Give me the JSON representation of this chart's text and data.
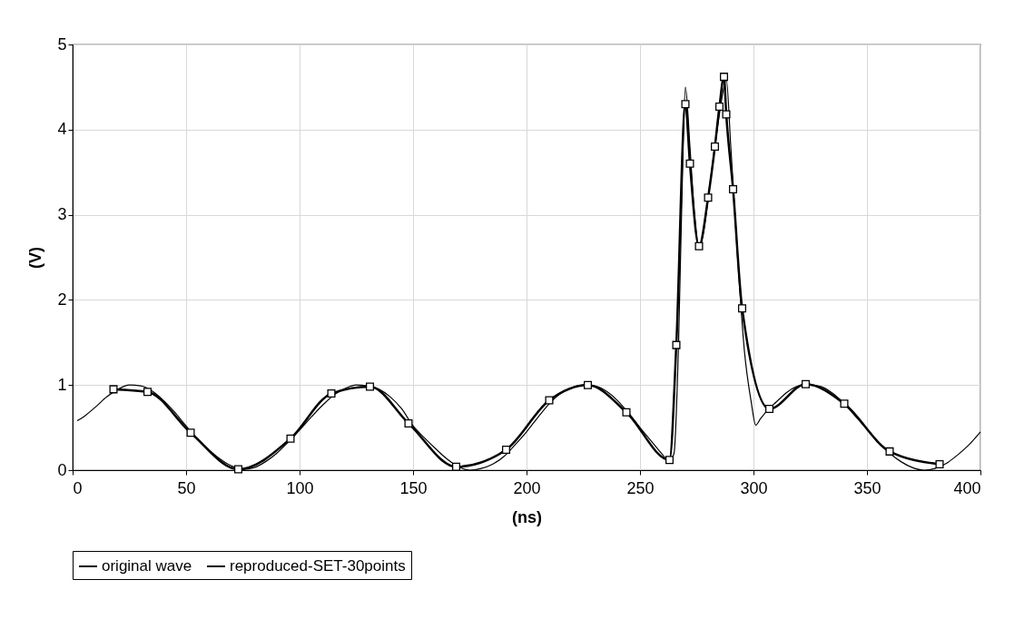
{
  "chart_data": {
    "type": "line",
    "xlabel": "(ns)",
    "ylabel": "(V)",
    "xlim": [
      0,
      400
    ],
    "xticks": [
      0,
      50,
      100,
      150,
      200,
      250,
      300,
      350,
      400
    ],
    "ylim": [
      0,
      5
    ],
    "yticks": [
      0,
      1,
      2,
      3,
      4,
      5
    ],
    "grid": true,
    "legend": "bottom",
    "series": [
      {
        "name": "original wave",
        "color": "#000000",
        "marker": "none",
        "x": [
          2,
          5,
          10,
          15,
          20,
          25,
          30,
          35,
          40,
          45,
          50,
          55,
          60,
          65,
          70,
          75,
          80,
          85,
          90,
          95,
          100,
          105,
          110,
          115,
          120,
          125,
          130,
          135,
          140,
          145,
          150,
          155,
          160,
          165,
          170,
          175,
          180,
          185,
          190,
          195,
          200,
          205,
          210,
          215,
          220,
          225,
          230,
          235,
          240,
          245,
          250,
          255,
          260,
          263,
          265,
          267,
          269,
          270,
          272,
          274,
          276,
          278,
          281,
          284,
          287,
          288,
          290,
          293,
          296,
          299,
          301,
          303,
          306,
          310,
          315,
          320,
          325,
          330,
          335,
          340,
          345,
          350,
          355,
          360,
          365,
          370,
          375,
          380,
          385,
          390,
          395,
          400
        ],
        "values": [
          0.58,
          0.63,
          0.74,
          0.86,
          0.95,
          1.0,
          0.99,
          0.93,
          0.82,
          0.68,
          0.52,
          0.37,
          0.24,
          0.13,
          0.05,
          0.01,
          0.03,
          0.1,
          0.2,
          0.33,
          0.47,
          0.62,
          0.76,
          0.88,
          0.96,
          1.0,
          0.99,
          0.95,
          0.86,
          0.72,
          0.52,
          0.38,
          0.25,
          0.13,
          0.04,
          0.0,
          0.02,
          0.07,
          0.16,
          0.3,
          0.45,
          0.62,
          0.78,
          0.9,
          0.97,
          1.0,
          0.99,
          0.93,
          0.82,
          0.67,
          0.5,
          0.34,
          0.18,
          0.1,
          0.2,
          1.5,
          3.8,
          4.5,
          3.8,
          3.0,
          2.6,
          2.8,
          3.4,
          4.0,
          4.5,
          4.6,
          3.8,
          2.5,
          1.4,
          0.8,
          0.53,
          0.6,
          0.7,
          0.8,
          0.92,
          0.99,
          1.0,
          0.98,
          0.9,
          0.78,
          0.63,
          0.48,
          0.33,
          0.2,
          0.1,
          0.03,
          0.0,
          0.02,
          0.08,
          0.18,
          0.3,
          0.45
        ]
      },
      {
        "name": "reproduced-SET-30points",
        "color": "#000000",
        "marker": "square",
        "x": [
          18,
          33,
          52,
          73,
          96,
          114,
          131,
          148,
          169,
          191,
          210,
          227,
          244,
          263,
          266,
          270,
          272,
          276,
          280,
          283,
          285,
          287,
          288,
          291,
          295,
          307,
          323,
          340,
          360,
          382
        ],
        "values": [
          0.95,
          0.92,
          0.44,
          0.01,
          0.37,
          0.9,
          0.98,
          0.55,
          0.04,
          0.24,
          0.82,
          1.0,
          0.68,
          0.12,
          1.47,
          4.3,
          3.6,
          2.63,
          3.2,
          3.8,
          4.27,
          4.62,
          4.18,
          3.3,
          1.9,
          0.72,
          1.01,
          0.78,
          0.22,
          0.07
        ]
      }
    ]
  }
}
